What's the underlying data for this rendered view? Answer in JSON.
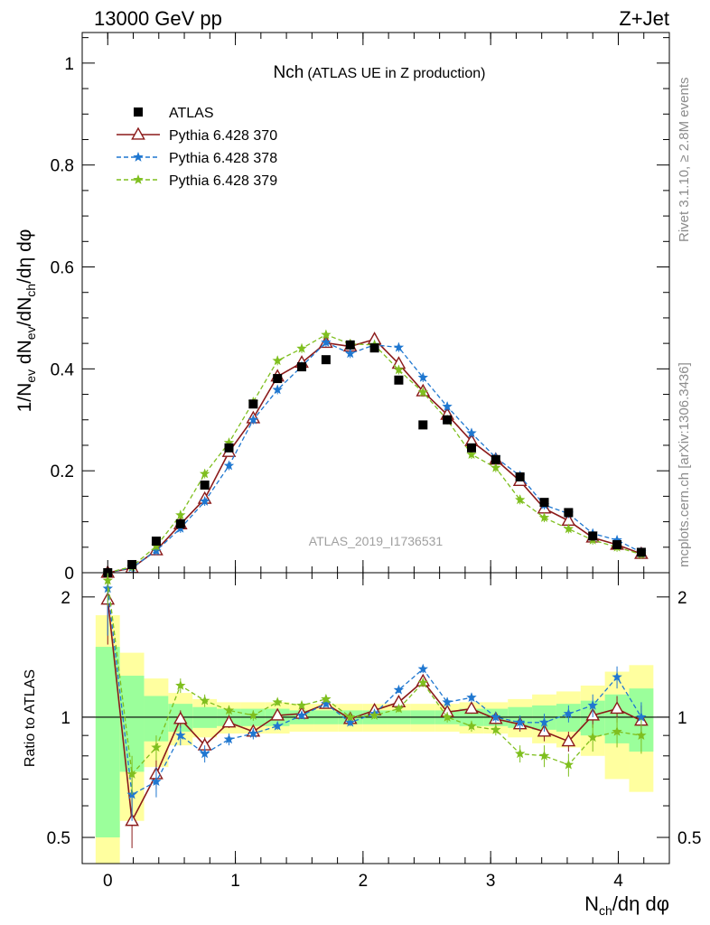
{
  "header": {
    "left": "13000 GeV pp",
    "right": "Z+Jet"
  },
  "side_labels": {
    "rivet": "Rivet 3.1.10, ≥ 2.8M events",
    "mcplots": "mcplots.cern.ch [arXiv:1306.3436]"
  },
  "watermark": "ATLAS_2019_I1736531",
  "title": {
    "main": "Nch",
    "sub": "(ATLAS UE in Z production)"
  },
  "axes": {
    "ylabel_main": "1/N_ev dN_ev/dN_ch/dη dφ",
    "ylabel_ratio": "Ratio to ATLAS",
    "xlabel": "N_ch/dη dφ",
    "x_ticks": [
      "0",
      "1",
      "2",
      "3",
      "4"
    ],
    "main_y_ticks": [
      "0",
      "0.2",
      "0.4",
      "0.6",
      "0.8",
      "1"
    ],
    "ratio_y_ticks": [
      "0.5",
      "1",
      "2"
    ]
  },
  "chart_data": {
    "type": "line",
    "x": [
      0.0,
      0.19,
      0.38,
      0.57,
      0.76,
      0.95,
      1.14,
      1.33,
      1.52,
      1.71,
      1.9,
      2.09,
      2.28,
      2.47,
      2.66,
      2.85,
      3.04,
      3.23,
      3.42,
      3.61,
      3.8,
      3.99,
      4.18
    ],
    "xlim": [
      -0.2,
      4.4
    ],
    "ylim": [
      0,
      1.06
    ],
    "ratio_ylim": [
      0.43,
      2.3
    ],
    "ratio_log": true,
    "legend_position": "top-left",
    "series": [
      {
        "name": "ATLAS",
        "style": "data",
        "color": "#000000",
        "values": [
          0.0,
          0.016,
          0.062,
          0.096,
          0.172,
          0.245,
          0.331,
          0.381,
          0.404,
          0.418,
          0.447,
          0.441,
          0.378,
          0.29,
          0.3,
          0.245,
          0.222,
          0.188,
          0.138,
          0.118,
          0.072,
          0.055,
          0.04
        ]
      },
      {
        "name": "Pythia 6.428 370",
        "style": "solid-triangle",
        "color": "#8b1a1a",
        "values": [
          0.0,
          0.009,
          0.044,
          0.095,
          0.145,
          0.237,
          0.303,
          0.385,
          0.412,
          0.451,
          0.444,
          0.458,
          0.41,
          0.356,
          0.31,
          0.258,
          0.222,
          0.18,
          0.126,
          0.102,
          0.069,
          0.055,
          0.037
        ],
        "ratio": [
          1.97,
          0.55,
          0.72,
          0.99,
          0.85,
          0.97,
          0.92,
          1.01,
          1.02,
          1.08,
          0.99,
          1.04,
          1.09,
          1.23,
          1.03,
          1.05,
          0.99,
          0.96,
          0.92,
          0.87,
          1.01,
          1.05,
          0.98
        ],
        "ratio_err": [
          0.45,
          0.08,
          0.06,
          0.05,
          0.04,
          0.03,
          0.03,
          0.02,
          0.02,
          0.02,
          0.02,
          0.02,
          0.02,
          0.03,
          0.03,
          0.03,
          0.03,
          0.04,
          0.05,
          0.05,
          0.07,
          0.08,
          0.09
        ]
      },
      {
        "name": "Pythia 6.428 378",
        "style": "dashed-star",
        "color": "#1f77d0",
        "values": [
          0.0,
          0.01,
          0.043,
          0.087,
          0.14,
          0.21,
          0.3,
          0.359,
          0.405,
          0.452,
          0.43,
          0.447,
          0.442,
          0.383,
          0.326,
          0.274,
          0.226,
          0.19,
          0.133,
          0.116,
          0.077,
          0.064,
          0.04
        ],
        "ratio": [
          2.1,
          0.64,
          0.69,
          0.9,
          0.81,
          0.88,
          0.91,
          0.95,
          1.01,
          1.08,
          0.97,
          1.02,
          1.17,
          1.32,
          1.09,
          1.12,
          1.0,
          0.97,
          0.97,
          1.02,
          1.07,
          1.26,
          1.0
        ],
        "ratio_err": [
          0.5,
          0.09,
          0.06,
          0.05,
          0.04,
          0.03,
          0.03,
          0.02,
          0.02,
          0.02,
          0.02,
          0.02,
          0.02,
          0.03,
          0.03,
          0.03,
          0.03,
          0.04,
          0.05,
          0.05,
          0.07,
          0.08,
          0.09
        ]
      },
      {
        "name": "Pythia 6.428 379",
        "style": "dashed-star",
        "color": "#7fbf1f",
        "values": [
          0.0,
          0.012,
          0.052,
          0.113,
          0.194,
          0.255,
          0.335,
          0.416,
          0.44,
          0.467,
          0.449,
          0.447,
          0.398,
          0.354,
          0.3,
          0.232,
          0.206,
          0.143,
          0.108,
          0.086,
          0.064,
          0.05,
          0.036
        ],
        "ratio": [
          2.2,
          0.72,
          0.84,
          1.2,
          1.1,
          1.04,
          1.01,
          1.09,
          1.07,
          1.11,
          1.0,
          1.01,
          1.05,
          1.22,
          1.0,
          0.95,
          0.93,
          0.81,
          0.8,
          0.76,
          0.89,
          0.92,
          0.9
        ],
        "ratio_err": [
          0.3,
          0.08,
          0.06,
          0.05,
          0.04,
          0.03,
          0.03,
          0.02,
          0.02,
          0.02,
          0.02,
          0.02,
          0.02,
          0.03,
          0.03,
          0.03,
          0.03,
          0.04,
          0.05,
          0.05,
          0.07,
          0.08,
          0.09
        ]
      }
    ],
    "bands": {
      "green_half": [
        0.5,
        0.27,
        0.13,
        0.08,
        0.06,
        0.05,
        0.05,
        0.05,
        0.04,
        0.04,
        0.04,
        0.04,
        0.04,
        0.04,
        0.04,
        0.05,
        0.05,
        0.06,
        0.07,
        0.08,
        0.1,
        0.14,
        0.18
      ],
      "yellow_half": [
        0.8,
        0.45,
        0.25,
        0.15,
        0.11,
        0.09,
        0.09,
        0.09,
        0.08,
        0.08,
        0.08,
        0.08,
        0.08,
        0.08,
        0.08,
        0.09,
        0.09,
        0.11,
        0.14,
        0.16,
        0.2,
        0.3,
        0.35
      ]
    }
  }
}
